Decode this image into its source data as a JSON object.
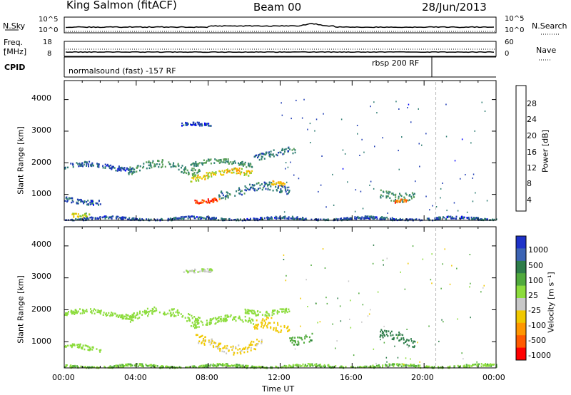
{
  "header": {
    "station": "King Salmon (fitACF)",
    "beam": "Beam 00",
    "date": "28/Jun/2013"
  },
  "top_panels": {
    "nsky_label": "N.Sky",
    "nsearch_label": "N.Search",
    "noise_ticks": [
      "10^5",
      "10^0"
    ],
    "freq_label_1": "Freq.",
    "freq_label_2": "[MHz]",
    "freq_ticks": [
      "18",
      "8"
    ],
    "nave_label": "Nave",
    "nave_ticks": [
      "60",
      "0"
    ],
    "cpid_label": "CPID",
    "cpid_mode_1": "normalsound (fast) -157 RF",
    "cpid_mode_2": "rbsp 200 RF"
  },
  "power_colorbar": {
    "label": "Power [dB]",
    "ticks": [
      "4",
      "8",
      "12",
      "16",
      "20",
      "24",
      "28"
    ],
    "colors": [
      "#0000ff",
      "#1e3cb4",
      "#2e7d73",
      "#5aa05a",
      "#7fc832",
      "#f0c800",
      "#ff9600",
      "#ff5a00",
      "#ff0000"
    ]
  },
  "velocity_colorbar": {
    "label": "Velocity [m s⁻¹]",
    "ticks": [
      "1000",
      "500",
      "100",
      "25",
      "-25",
      "-100",
      "-500",
      "-1000"
    ],
    "colors": [
      "#1e32c8",
      "#3c64b4",
      "#2e7d4a",
      "#50aa3c",
      "#8cdc3c",
      "#c8c8c8",
      "#f0c800",
      "#ff9600",
      "#ff5a00",
      "#ff0000"
    ]
  },
  "axes": {
    "ylabel": "Slant Range [km]",
    "xlabel": "Time UT",
    "xticks": [
      "00:00",
      "04:00",
      "08:00",
      "12:00",
      "16:00",
      "20:00",
      "00:00"
    ],
    "yticks": [
      "1000",
      "2000",
      "3000",
      "4000"
    ]
  },
  "chart_data": [
    {
      "type": "heatmap",
      "title": "",
      "xlabel": "",
      "ylabel": "Slant Range [km]",
      "x_range_hours": [
        0,
        24
      ],
      "ylim": [
        180,
        4600
      ],
      "color_quantity": "Power [dB]",
      "color_range": [
        0,
        30
      ],
      "echo_regions": [
        {
          "t_start": 0.0,
          "t_end": 3.8,
          "range_km": 1900,
          "width_km": 150,
          "value": 6
        },
        {
          "t_start": 3.5,
          "t_end": 7.5,
          "range_km": 1850,
          "width_km": 250,
          "value": 10
        },
        {
          "t_start": 7.0,
          "t_end": 10.5,
          "range_km": 1650,
          "width_km": 200,
          "value": 18
        },
        {
          "t_start": 7.0,
          "t_end": 10.5,
          "range_km": 2000,
          "width_km": 150,
          "value": 10
        },
        {
          "t_start": 10.5,
          "t_end": 12.8,
          "range_km": 2300,
          "width_km": 200,
          "value": 8
        },
        {
          "t_start": 6.5,
          "t_end": 8.2,
          "range_km": 3200,
          "width_km": 100,
          "value": 5
        },
        {
          "t_start": 8.5,
          "t_end": 12.5,
          "range_km": 1150,
          "width_km": 250,
          "value": 8
        },
        {
          "t_start": 11.5,
          "t_end": 12.3,
          "range_km": 1400,
          "width_km": 150,
          "value": 20
        },
        {
          "t_start": 7.2,
          "t_end": 8.6,
          "range_km": 850,
          "width_km": 120,
          "value": 26
        },
        {
          "t_start": 0.0,
          "t_end": 2.0,
          "range_km": 850,
          "width_km": 150,
          "value": 6
        },
        {
          "t_start": 0.4,
          "t_end": 1.4,
          "range_km": 430,
          "width_km": 120,
          "value": 16
        },
        {
          "t_start": 0.0,
          "t_end": 24.0,
          "range_km": 250,
          "width_km": 80,
          "value": 6
        },
        {
          "t_start": 17.5,
          "t_end": 19.5,
          "range_km": 1100,
          "width_km": 300,
          "value": 10
        },
        {
          "t_start": 18.3,
          "t_end": 19.0,
          "range_km": 850,
          "width_km": 100,
          "value": 24
        }
      ]
    },
    {
      "type": "heatmap",
      "title": "",
      "xlabel": "Time UT",
      "ylabel": "Slant Range [km]",
      "x_range_hours": [
        0,
        24
      ],
      "ylim": [
        180,
        4600
      ],
      "color_quantity": "Velocity [m s⁻¹]",
      "color_range": [
        -1000,
        1000
      ],
      "echo_regions": [
        {
          "t_start": 0.0,
          "t_end": 3.8,
          "range_km": 1900,
          "width_km": 150,
          "value": 0
        },
        {
          "t_start": 3.5,
          "t_end": 7.5,
          "range_km": 1850,
          "width_km": 250,
          "value": 0
        },
        {
          "t_start": 7.0,
          "t_end": 10.5,
          "range_km": 1650,
          "width_km": 200,
          "value": 0
        },
        {
          "t_start": 10.0,
          "t_end": 12.5,
          "range_km": 2000,
          "width_km": 150,
          "value": 0
        },
        {
          "t_start": 6.5,
          "t_end": 8.2,
          "range_km": 3200,
          "width_km": 100,
          "value": -30
        },
        {
          "t_start": 7.2,
          "t_end": 11.0,
          "range_km": 950,
          "width_km": 300,
          "value": -120
        },
        {
          "t_start": 10.5,
          "t_end": 12.5,
          "range_km": 1400,
          "width_km": 400,
          "value": -150
        },
        {
          "t_start": 12.5,
          "t_end": 13.8,
          "range_km": 1200,
          "width_km": 250,
          "value": 80
        },
        {
          "t_start": 0.0,
          "t_end": 2.0,
          "range_km": 850,
          "width_km": 150,
          "value": 0
        },
        {
          "t_start": 0.0,
          "t_end": 24.0,
          "range_km": 250,
          "width_km": 80,
          "value": 20
        },
        {
          "t_start": 17.5,
          "t_end": 19.5,
          "range_km": 1100,
          "width_km": 300,
          "value": 300
        }
      ]
    }
  ]
}
